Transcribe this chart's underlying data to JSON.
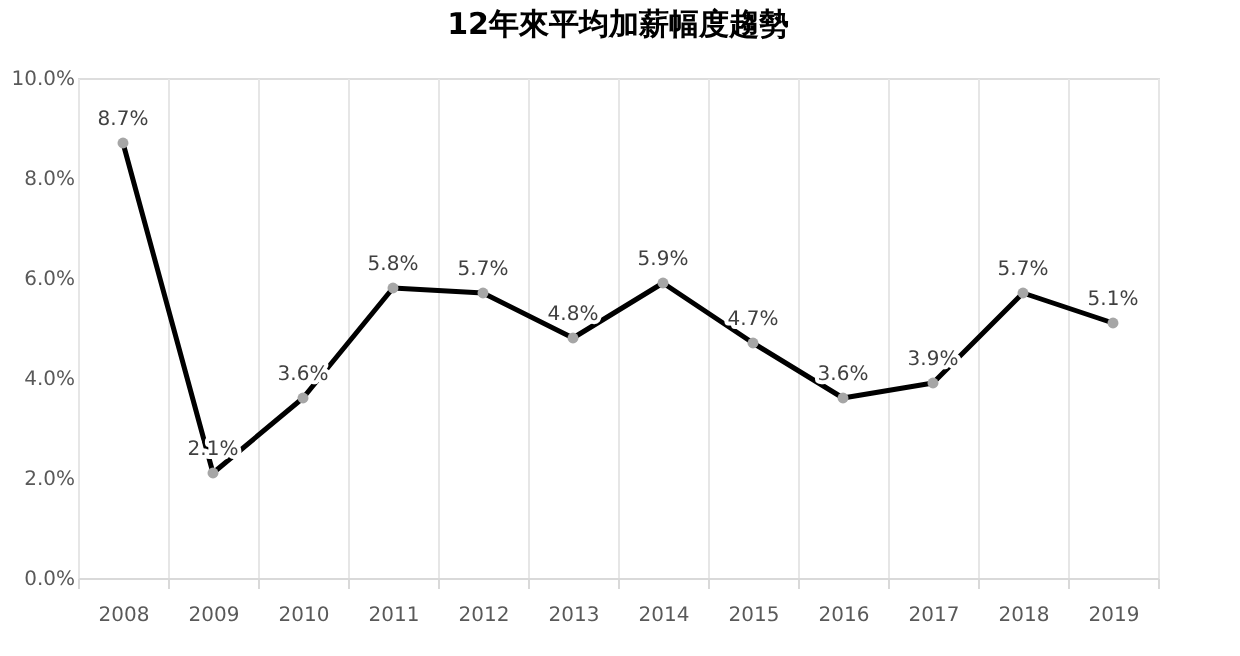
{
  "chart_data": {
    "type": "line",
    "title": "12年來平均加薪幅度趨勢",
    "categories": [
      "2008",
      "2009",
      "2010",
      "2011",
      "2012",
      "2013",
      "2014",
      "2015",
      "2016",
      "2017",
      "2018",
      "2019"
    ],
    "series": [
      {
        "color": "#000000",
        "values": [
          8.7,
          2.1,
          3.6,
          5.8,
          5.7,
          4.8,
          5.9,
          4.7,
          3.6,
          3.9,
          5.7,
          5.1
        ],
        "value_labels": [
          "8.7%",
          "2.1%",
          "3.6%",
          "5.8%",
          "5.7%",
          "4.8%",
          "5.9%",
          "4.7%",
          "3.6%",
          "3.9%",
          "5.7%",
          "5.1%"
        ]
      }
    ],
    "ylim": [
      0,
      10
    ],
    "yticks": [
      {
        "value": 0,
        "label": "0.0%"
      },
      {
        "value": 2,
        "label": "2.0%"
      },
      {
        "value": 4,
        "label": "4.0%"
      },
      {
        "value": 6,
        "label": "6.0%"
      },
      {
        "value": 8,
        "label": "8.0%"
      },
      {
        "value": 10,
        "label": "10.0%"
      }
    ],
    "grid": "x",
    "marker": "circle",
    "line_style": "solid"
  }
}
